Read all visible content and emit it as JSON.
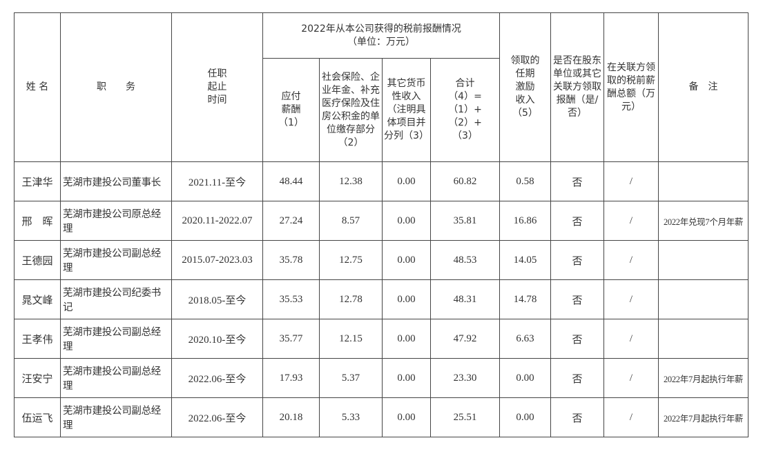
{
  "headers": {
    "name": "姓 名",
    "position": "职　　务",
    "tenure": "任职\n起止\n时间",
    "group": "2022年从本公司获得的税前报酬情况\n（单位：万元）",
    "salary": "应付\n薪酬\n（1）",
    "insurance": "社会保险、企业年金、补充医疗保险及住房公积金的单位缴存部分\n（2）",
    "other": "其它货币性收入（注明具体项目并分列（3）",
    "total": "合计\n（4）=\n（1）+\n（2）+\n（3）",
    "incentive": "领取的\n任期\n激励\n收入\n（5）",
    "related_flag": "是否在股东单位或其它关联方领取报酬（是/否）",
    "related_amount": "在关联方领取的税前薪酬总额（万元）",
    "remark": "备　注"
  },
  "rows": [
    {
      "name": "王津华",
      "position": "芜湖市建投公司董事长",
      "tenure": "2021.11-至今",
      "salary": "48.44",
      "insurance": "12.38",
      "other": "0.00",
      "total": "60.82",
      "incentive": "0.58",
      "related_flag": "否",
      "related_amount": "/",
      "remark": ""
    },
    {
      "name": "邢　晖",
      "position": "芜湖市建投公司原总经理",
      "tenure": "2020.11-2022.07",
      "salary": "27.24",
      "insurance": "8.57",
      "other": "0.00",
      "total": "35.81",
      "incentive": "16.86",
      "related_flag": "否",
      "related_amount": "/",
      "remark": "2022年兑现7个月年薪"
    },
    {
      "name": "王德园",
      "position": "芜湖市建投公司副总经理",
      "tenure": "2015.07-2023.03",
      "salary": "35.78",
      "insurance": "12.75",
      "other": "0.00",
      "total": "48.53",
      "incentive": "14.05",
      "related_flag": "否",
      "related_amount": "/",
      "remark": ""
    },
    {
      "name": "晁文峰",
      "position": "芜湖市建投公司纪委书记",
      "tenure": "2018.05-至今",
      "salary": "35.53",
      "insurance": "12.78",
      "other": "0.00",
      "total": "48.31",
      "incentive": "14.78",
      "related_flag": "否",
      "related_amount": "/",
      "remark": ""
    },
    {
      "name": "王孝伟",
      "position": "芜湖市建投公司副总经理",
      "tenure": "2020.10-至今",
      "salary": "35.77",
      "insurance": "12.15",
      "other": "0.00",
      "total": "47.92",
      "incentive": "6.63",
      "related_flag": "否",
      "related_amount": "/",
      "remark": ""
    },
    {
      "name": "汪安宁",
      "position": "芜湖市建投公司副总经理",
      "tenure": "2022.06-至今",
      "salary": "17.93",
      "insurance": "5.37",
      "other": "0.00",
      "total": "23.30",
      "incentive": "0.00",
      "related_flag": "否",
      "related_amount": "/",
      "remark": "2022年7月起执行年薪"
    },
    {
      "name": "伍运飞",
      "position": "芜湖市建投公司副总经理",
      "tenure": "2022.06-至今",
      "salary": "20.18",
      "insurance": "5.33",
      "other": "0.00",
      "total": "25.51",
      "incentive": "0.00",
      "related_flag": "否",
      "related_amount": "/",
      "remark": "2022年7月起执行年薪"
    }
  ]
}
